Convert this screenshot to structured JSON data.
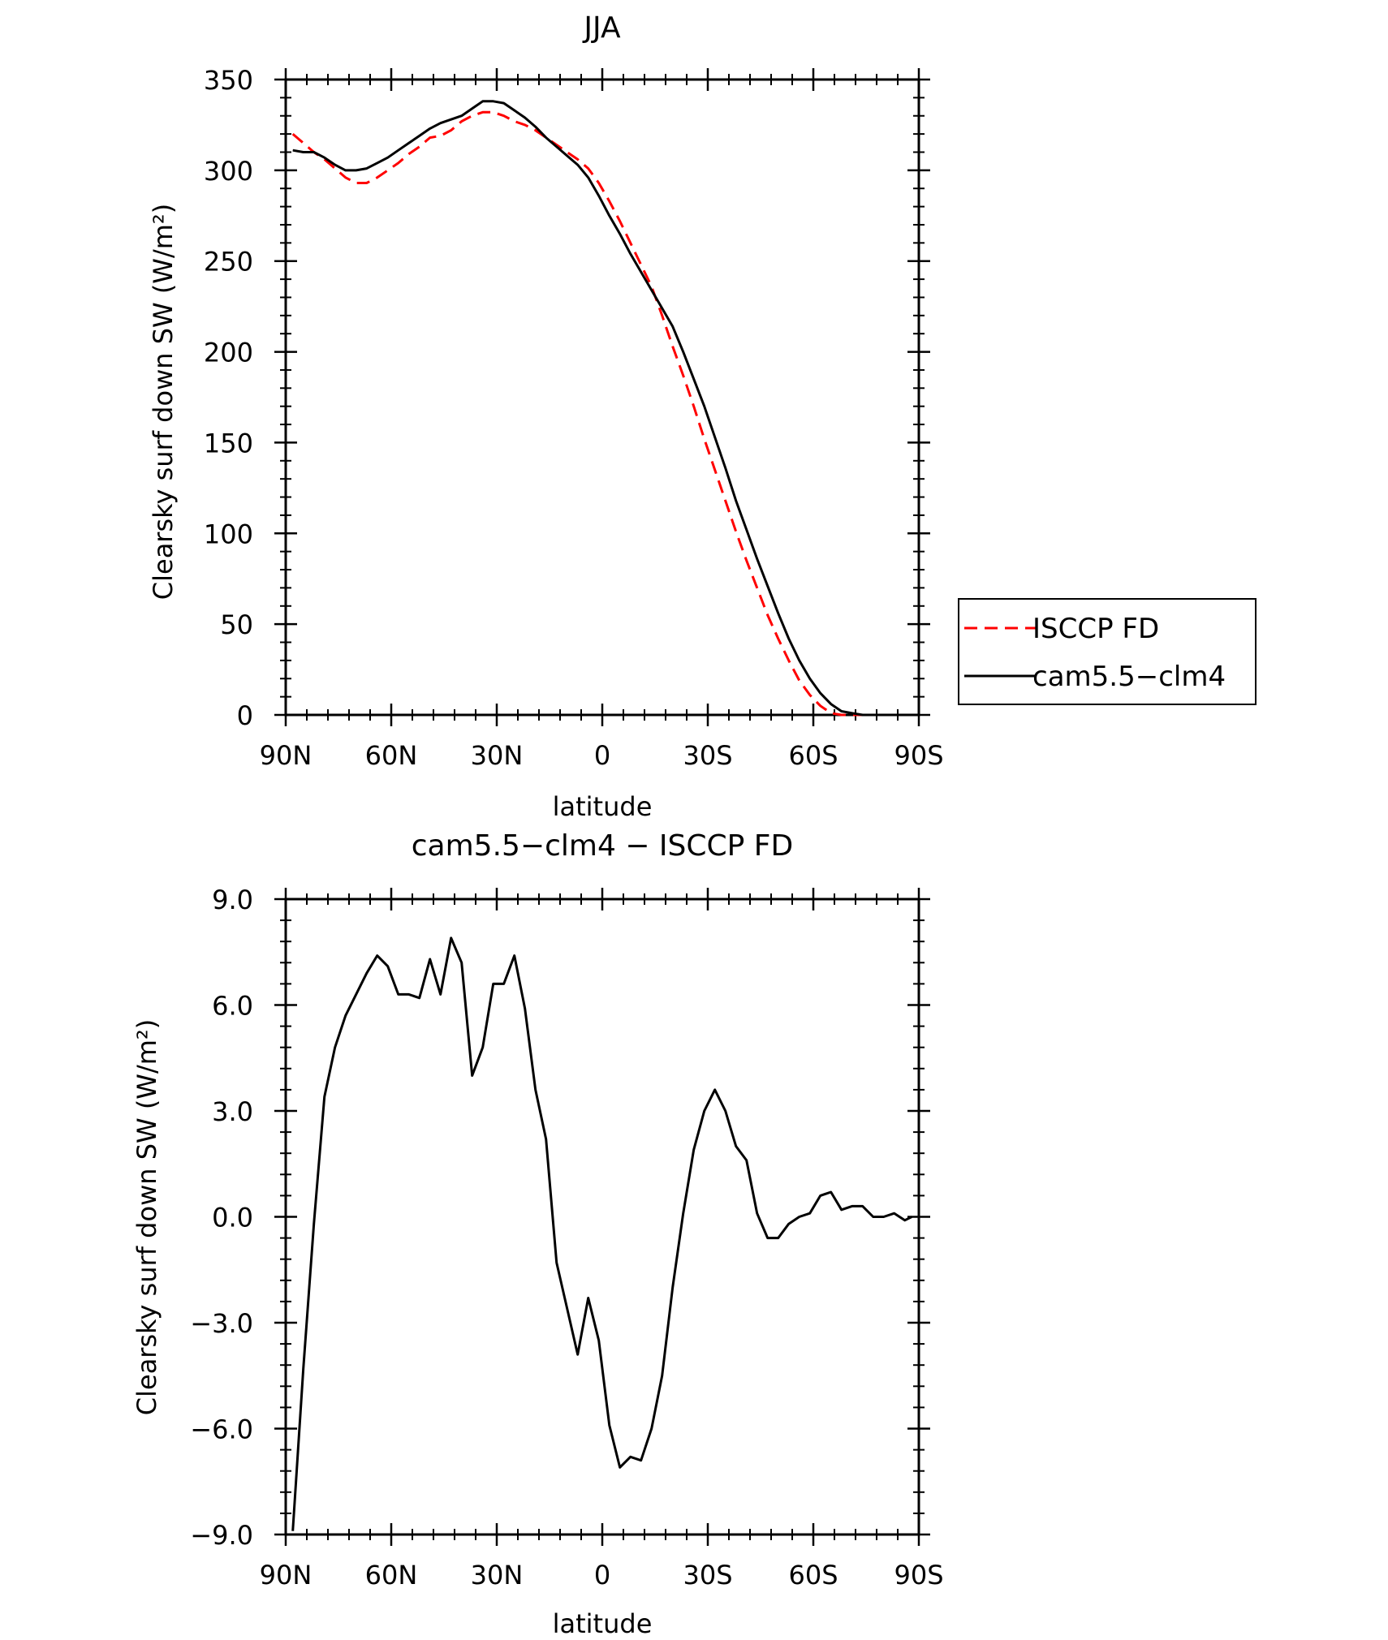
{
  "chart_data": [
    {
      "type": "line",
      "title": "JJA",
      "xlabel": "latitude",
      "ylabel": "Clearsky surf down SW (W/m²)",
      "xlim": [
        90,
        -90
      ],
      "ylim": [
        0,
        350
      ],
      "xticks": [
        90,
        60,
        30,
        0,
        -30,
        -60,
        -90
      ],
      "xtick_labels": [
        "90N",
        "60N",
        "30N",
        "0",
        "30S",
        "60S",
        "90S"
      ],
      "yticks": [
        0,
        50,
        100,
        150,
        200,
        250,
        300,
        350
      ],
      "ytick_labels": [
        "0",
        "50",
        "100",
        "150",
        "200",
        "250",
        "300",
        "350"
      ],
      "legend": "right",
      "grid": false,
      "series": [
        {
          "name": "ISCCP FD",
          "color": "#ff0000",
          "style": "dashed",
          "x": [
            88,
            85,
            82,
            79,
            76,
            73,
            70,
            67,
            64,
            61,
            58,
            55,
            52,
            49,
            46,
            43,
            40,
            37,
            34,
            31,
            28,
            25,
            22,
            19,
            16,
            13,
            10,
            7,
            4,
            1,
            -2,
            -5,
            -8,
            -11,
            -14,
            -17,
            -20,
            -23,
            -26,
            -29,
            -32,
            -35,
            -38,
            -41,
            -44,
            -47,
            -50,
            -53,
            -56,
            -59,
            -62,
            -65,
            -68,
            -71,
            -74,
            -77,
            -80,
            -83,
            -86,
            -88
          ],
          "y": [
            320,
            315,
            310,
            306,
            301,
            296,
            293,
            293,
            296,
            300,
            304,
            309,
            313,
            318,
            319,
            322,
            327,
            330,
            332,
            332,
            330,
            327,
            325,
            322,
            318,
            314,
            310,
            306,
            301,
            293,
            283,
            272,
            260,
            248,
            236,
            220,
            203,
            187,
            170,
            152,
            135,
            118,
            101,
            85,
            70,
            55,
            42,
            30,
            19,
            11,
            5,
            1,
            0,
            0,
            0,
            0,
            0,
            0,
            0,
            0
          ]
        },
        {
          "name": "cam5.5-clm4",
          "color": "#000000",
          "style": "solid",
          "x": [
            88,
            85,
            82,
            79,
            76,
            73,
            70,
            67,
            64,
            61,
            58,
            55,
            52,
            49,
            46,
            43,
            40,
            37,
            34,
            31,
            28,
            25,
            22,
            19,
            16,
            13,
            10,
            7,
            4,
            1,
            -2,
            -5,
            -8,
            -11,
            -14,
            -17,
            -20,
            -23,
            -26,
            -29,
            -32,
            -35,
            -38,
            -41,
            -44,
            -47,
            -50,
            -53,
            -56,
            -59,
            -62,
            -65,
            -68,
            -71,
            -74,
            -77,
            -80,
            -83,
            -86,
            -88
          ],
          "y": [
            311,
            310,
            310,
            307,
            303,
            300,
            300,
            301,
            304,
            307,
            311,
            315,
            319,
            323,
            326,
            328,
            330,
            334,
            338,
            338,
            337,
            333,
            329,
            324,
            318,
            313,
            308,
            303,
            296,
            286,
            275,
            265,
            254,
            244,
            234,
            224,
            214,
            200,
            185,
            170,
            153,
            136,
            118,
            102,
            86,
            71,
            56,
            42,
            30,
            20,
            12,
            6,
            2,
            1,
            0,
            0,
            0,
            0,
            0,
            0
          ]
        }
      ]
    },
    {
      "type": "line",
      "title": "cam5.5−clm4 − ISCCP FD",
      "xlabel": "latitude",
      "ylabel": "Clearsky surf down SW (W/m²)",
      "xlim": [
        90,
        -90
      ],
      "ylim": [
        -9,
        9
      ],
      "xticks": [
        90,
        60,
        30,
        0,
        -30,
        -60,
        -90
      ],
      "xtick_labels": [
        "90N",
        "60N",
        "30N",
        "0",
        "30S",
        "60S",
        "90S"
      ],
      "yticks": [
        -9,
        -6,
        -3,
        0,
        3,
        6,
        9
      ],
      "ytick_labels": [
        "−9.0",
        "−6.0",
        "−3.0",
        "0.0",
        "3.0",
        "6.0",
        "9.0"
      ],
      "grid": false,
      "series": [
        {
          "color": "#000000",
          "style": "solid",
          "x": [
            88,
            85,
            82,
            79,
            76,
            73,
            70,
            67,
            64,
            61,
            58,
            55,
            52,
            49,
            46,
            43,
            40,
            37,
            34,
            31,
            28,
            25,
            22,
            19,
            16,
            13,
            10,
            7,
            4,
            1,
            -2,
            -5,
            -8,
            -11,
            -14,
            -17,
            -20,
            -23,
            -26,
            -29,
            -32,
            -35,
            -38,
            -41,
            -44,
            -47,
            -50,
            -53,
            -56,
            -59,
            -62,
            -65,
            -68,
            -71,
            -74,
            -77,
            -80,
            -83,
            -86,
            -88
          ],
          "y": [
            -8.9,
            -4.3,
            -0.2,
            3.4,
            4.8,
            5.7,
            6.3,
            6.9,
            7.4,
            7.1,
            6.3,
            6.3,
            6.2,
            7.3,
            6.3,
            7.9,
            7.2,
            4.0,
            4.8,
            6.6,
            6.6,
            7.4,
            5.9,
            3.6,
            2.2,
            -1.3,
            -2.6,
            -3.9,
            -2.3,
            -3.5,
            -5.9,
            -7.1,
            -6.8,
            -6.9,
            -6.0,
            -4.5,
            -2.0,
            0.1,
            1.9,
            3.0,
            3.6,
            3.0,
            2.0,
            1.6,
            0.1,
            -0.6,
            -0.6,
            -0.2,
            0.0,
            0.1,
            0.6,
            0.7,
            0.2,
            0.3,
            0.3,
            0.0,
            0.0,
            0.1,
            -0.1,
            0.0
          ]
        }
      ]
    }
  ],
  "legend": {
    "items": [
      {
        "label": "ISCCP FD",
        "color": "#ff0000",
        "style": "dashed"
      },
      {
        "label": "cam5.5−clm4",
        "color": "#000000",
        "style": "solid"
      }
    ]
  }
}
